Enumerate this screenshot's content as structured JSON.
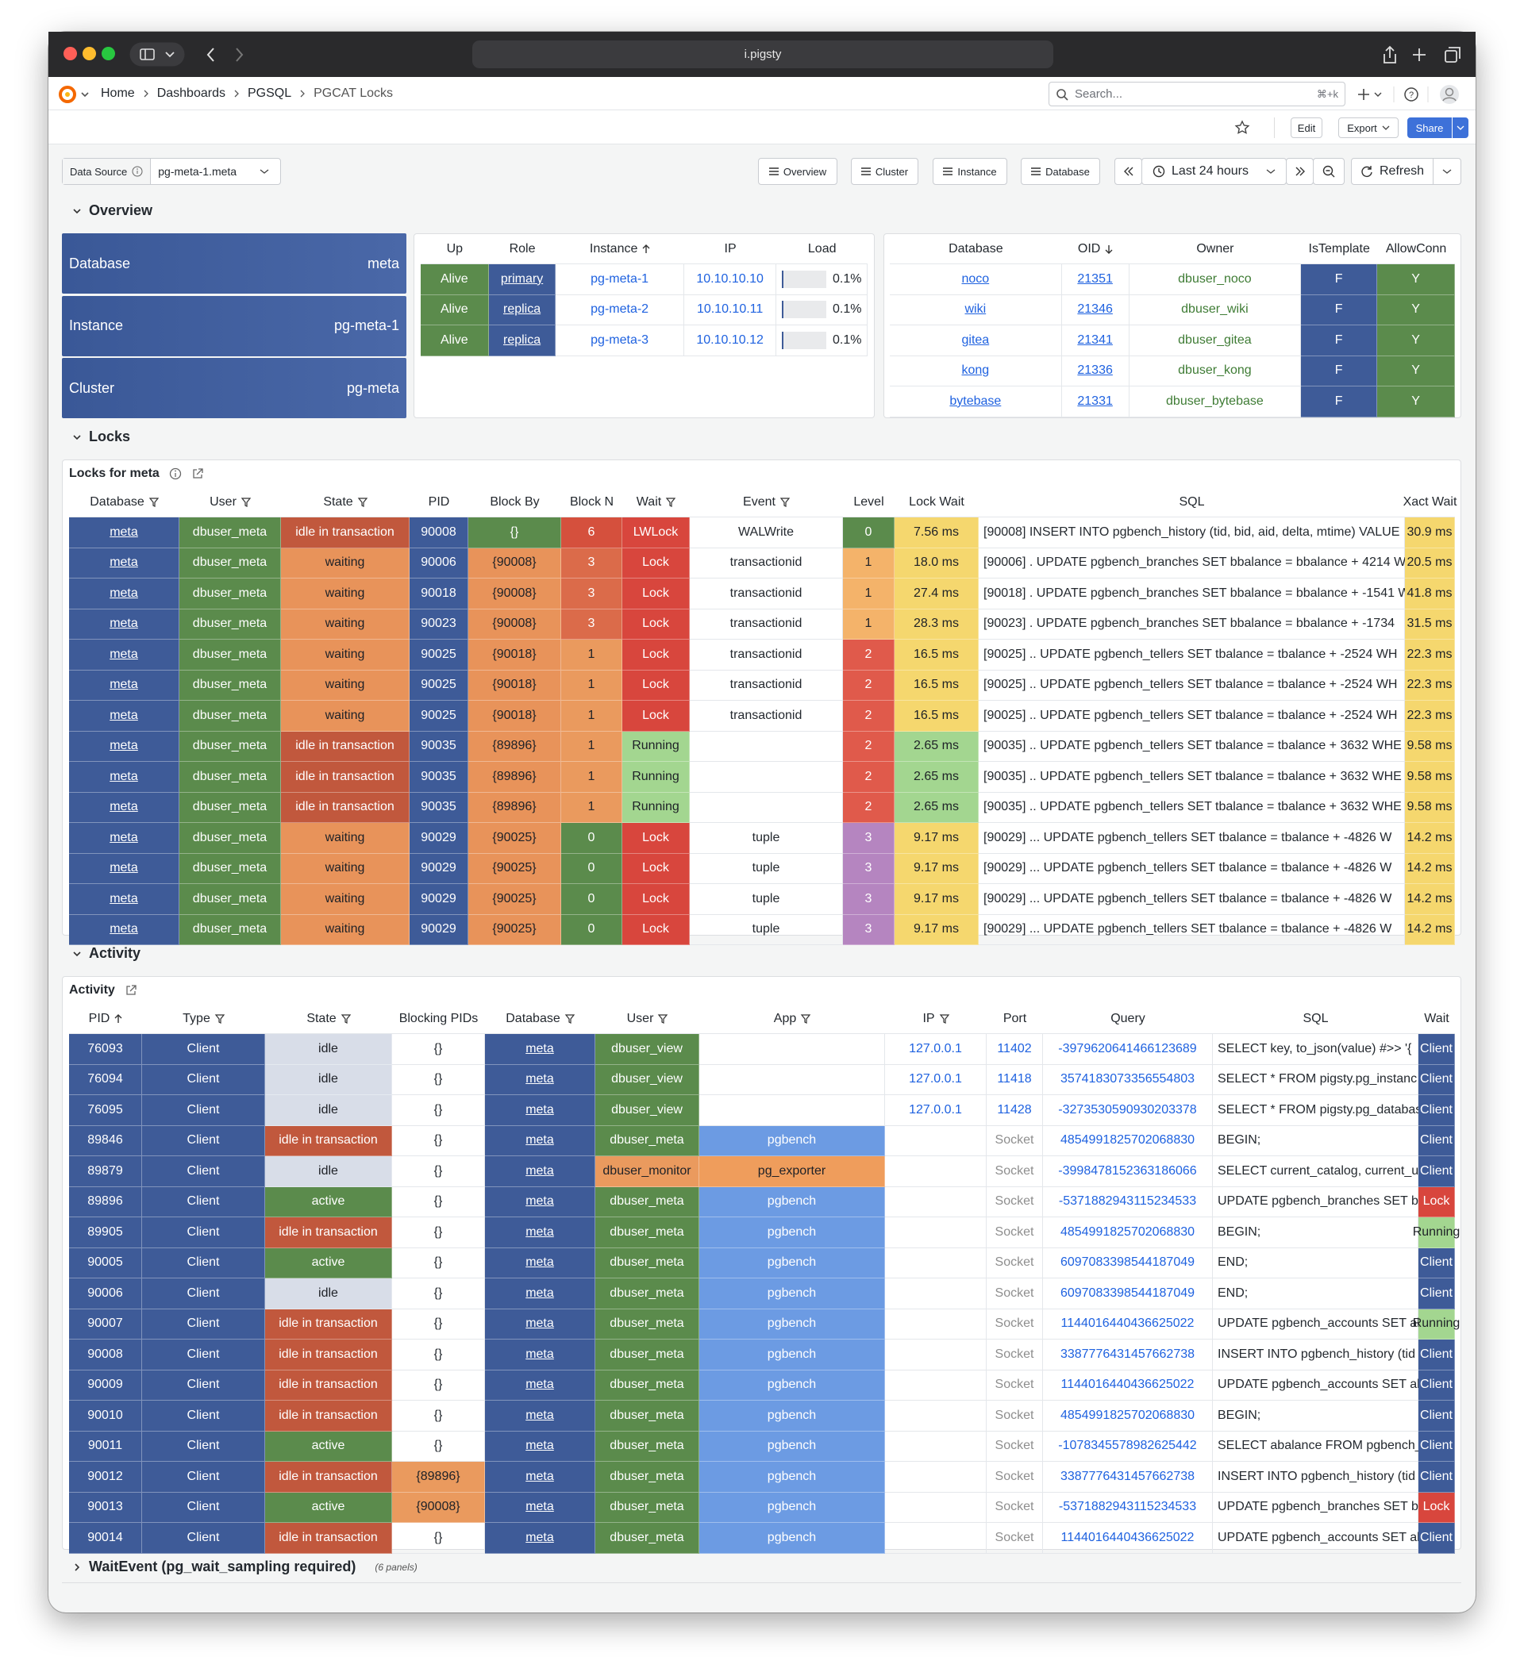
{
  "browser": {
    "url": "i.pigsty"
  },
  "nav": {
    "breadcrumbs": [
      "Home",
      "Dashboards",
      "PGSQL",
      "PGCAT Locks"
    ],
    "search": "Search...",
    "shortcut": "⌘+k"
  },
  "toolbar": {
    "edit": "Edit",
    "export": "Export",
    "share": "Share"
  },
  "variables": {
    "label": "Data Source",
    "value": "pg-meta-1.meta"
  },
  "links": [
    "Overview",
    "Cluster",
    "Instance",
    "Database"
  ],
  "time": {
    "range": "Last 24 hours",
    "refresh": "Refresh"
  },
  "sections": {
    "overview": "Overview",
    "locks": "Locks",
    "activity": "Activity",
    "wait_event": "WaitEvent (pg_wait_sampling required)",
    "wait_event_note": "(6 panels)"
  },
  "stats": [
    {
      "label": "Database",
      "value": "meta"
    },
    {
      "label": "Instance",
      "value": "pg-meta-1"
    },
    {
      "label": "Cluster",
      "value": "pg-meta"
    }
  ],
  "instances": {
    "columns": [
      {
        "name": "Up",
        "fill": "#5b8b4c"
      },
      {
        "name": "Role",
        "fill": "#3e5b98",
        "link": true
      },
      {
        "name": "Instance",
        "sort": "asc",
        "color": "#1f62e0"
      },
      {
        "name": "IP",
        "color": "#1f62e0"
      },
      {
        "name": "Load",
        "gauge": [
          0,
          100
        ]
      }
    ],
    "rows": [
      [
        "Alive",
        "primary",
        "pg-meta-1",
        "10.10.10.10",
        {
          "value": 0.1,
          "label": "0.1%"
        }
      ],
      [
        "Alive",
        "replica",
        "pg-meta-2",
        "10.10.10.11",
        {
          "value": 0.1,
          "label": "0.1%"
        }
      ],
      [
        "Alive",
        "replica",
        "pg-meta-3",
        "10.10.10.12",
        {
          "value": 0.1,
          "label": "0.1%"
        }
      ]
    ]
  },
  "databases": {
    "columns": [
      {
        "name": "Database",
        "link": true,
        "color": "#1f62e0"
      },
      {
        "name": "OID",
        "sort": "desc",
        "link": true,
        "color": "#1f62e0"
      },
      {
        "name": "Owner",
        "color": "#3f7c35"
      },
      {
        "name": "IsTemplate",
        "fill": "#3e5b98"
      },
      {
        "name": "AllowConn",
        "fill": "#5b8b4c"
      }
    ],
    "rows": [
      [
        "noco",
        21351,
        "dbuser_noco",
        "F",
        "Y"
      ],
      [
        "wiki",
        21346,
        "dbuser_wiki",
        "F",
        "Y"
      ],
      [
        "gitea",
        21341,
        "dbuser_gitea",
        "F",
        "Y"
      ],
      [
        "kong",
        21336,
        "dbuser_kong",
        "F",
        "Y"
      ],
      [
        "bytebase",
        21331,
        "dbuser_bytebase",
        "F",
        "Y"
      ]
    ]
  },
  "locks": {
    "title": "Locks for meta",
    "columns": [
      {
        "name": "Database",
        "filter": true,
        "fill": "#3e5b98",
        "link": true
      },
      {
        "name": "User",
        "filter": true,
        "fill": "#5b8b4c"
      },
      {
        "name": "State",
        "filter": true,
        "fills": {
          "idle in transaction": "#c1583d",
          "waiting": "#e8935a"
        }
      },
      {
        "name": "PID",
        "fill": "#3e5b98"
      },
      {
        "name": "Block By",
        "fill": "#e8935a",
        "fills": {
          "{}": "#5b8b4c"
        }
      },
      {
        "name": "Block N",
        "fills": {
          "6": "#d5503d",
          "3": "#db6b4a",
          "1": "#ea9a5e",
          "0": "#5b8b4c"
        }
      },
      {
        "name": "Wait",
        "filter": true,
        "fills": {
          "LWLock": "#d8463d",
          "Lock": "#d8463d",
          "Running": "#a3d690"
        }
      },
      {
        "name": "Event",
        "filter": true
      },
      {
        "name": "Level",
        "fills": {
          "0": "#5b8b4c",
          "1": "#f4b36a",
          "2": "#e05a4b",
          "3": "#b585c0"
        }
      },
      {
        "name": "Lock Wait",
        "fill": "#f5d76e",
        "fills": {
          "2.65 ms": "#a3d690"
        }
      },
      {
        "name": "SQL"
      },
      {
        "name": "Xact Wait",
        "fill": "#f5d76e"
      }
    ],
    "rows": [
      [
        "meta",
        "dbuser_meta",
        "idle in transaction",
        90008,
        "{}",
        6,
        "LWLock",
        "WALWrite",
        0,
        "7.56 ms",
        "[90008] INSERT INTO pgbench_history (tid, bid, aid, delta, mtime) VALUE",
        "30.9 ms"
      ],
      [
        "meta",
        "dbuser_meta",
        "waiting",
        90006,
        "{90008}",
        3,
        "Lock",
        "transactionid",
        1,
        "18.0 ms",
        "[90006] . UPDATE pgbench_branches SET bbalance = bbalance + 4214 W",
        "20.5 ms"
      ],
      [
        "meta",
        "dbuser_meta",
        "waiting",
        90018,
        "{90008}",
        3,
        "Lock",
        "transactionid",
        1,
        "27.4 ms",
        "[90018] . UPDATE pgbench_branches SET bbalance = bbalance + -1541 W",
        "41.8 ms"
      ],
      [
        "meta",
        "dbuser_meta",
        "waiting",
        90023,
        "{90008}",
        3,
        "Lock",
        "transactionid",
        1,
        "28.3 ms",
        "[90023] . UPDATE pgbench_branches SET bbalance = bbalance + -1734",
        "31.5 ms"
      ],
      [
        "meta",
        "dbuser_meta",
        "waiting",
        90025,
        "{90018}",
        1,
        "Lock",
        "transactionid",
        2,
        "16.5 ms",
        "[90025] .. UPDATE pgbench_tellers SET tbalance = tbalance + -2524 WH",
        "22.3 ms"
      ],
      [
        "meta",
        "dbuser_meta",
        "waiting",
        90025,
        "{90018}",
        1,
        "Lock",
        "transactionid",
        2,
        "16.5 ms",
        "[90025] .. UPDATE pgbench_tellers SET tbalance = tbalance + -2524 WH",
        "22.3 ms"
      ],
      [
        "meta",
        "dbuser_meta",
        "waiting",
        90025,
        "{90018}",
        1,
        "Lock",
        "transactionid",
        2,
        "16.5 ms",
        "[90025] .. UPDATE pgbench_tellers SET tbalance = tbalance + -2524 WH",
        "22.3 ms"
      ],
      [
        "meta",
        "dbuser_meta",
        "idle in transaction",
        90035,
        "{89896}",
        1,
        "Running",
        null,
        2,
        "2.65 ms",
        "[90035] .. UPDATE pgbench_tellers SET tbalance = tbalance + 3632 WHE",
        "9.58 ms"
      ],
      [
        "meta",
        "dbuser_meta",
        "idle in transaction",
        90035,
        "{89896}",
        1,
        "Running",
        null,
        2,
        "2.65 ms",
        "[90035] .. UPDATE pgbench_tellers SET tbalance = tbalance + 3632 WHE",
        "9.58 ms"
      ],
      [
        "meta",
        "dbuser_meta",
        "idle in transaction",
        90035,
        "{89896}",
        1,
        "Running",
        null,
        2,
        "2.65 ms",
        "[90035] .. UPDATE pgbench_tellers SET tbalance = tbalance + 3632 WHE",
        "9.58 ms"
      ],
      [
        "meta",
        "dbuser_meta",
        "waiting",
        90029,
        "{90025}",
        0,
        "Lock",
        "tuple",
        3,
        "9.17 ms",
        "[90029] ... UPDATE pgbench_tellers SET tbalance = tbalance + -4826 W",
        "14.2 ms"
      ],
      [
        "meta",
        "dbuser_meta",
        "waiting",
        90029,
        "{90025}",
        0,
        "Lock",
        "tuple",
        3,
        "9.17 ms",
        "[90029] ... UPDATE pgbench_tellers SET tbalance = tbalance + -4826 W",
        "14.2 ms"
      ],
      [
        "meta",
        "dbuser_meta",
        "waiting",
        90029,
        "{90025}",
        0,
        "Lock",
        "tuple",
        3,
        "9.17 ms",
        "[90029] ... UPDATE pgbench_tellers SET tbalance = tbalance + -4826 W",
        "14.2 ms"
      ],
      [
        "meta",
        "dbuser_meta",
        "waiting",
        90029,
        "{90025}",
        0,
        "Lock",
        "tuple",
        3,
        "9.17 ms",
        "[90029] ... UPDATE pgbench_tellers SET tbalance = tbalance + -4826 W",
        "14.2 ms"
      ]
    ]
  },
  "activity": {
    "title": "Activity",
    "columns": [
      {
        "name": "PID",
        "sort": "asc",
        "fill": "#3e5b98"
      },
      {
        "name": "Type",
        "filter": true,
        "fill": "#3e5b98"
      },
      {
        "name": "State",
        "filter": true,
        "fills": {
          "idle": "#d8dde8",
          "idle in transaction": "#c1583d",
          "active": "#5b8b4c"
        }
      },
      {
        "name": "Blocking PIDs",
        "fills": {
          "{89896}": "#ea9a5e",
          "{90008}": "#ea9a5e"
        }
      },
      {
        "name": "Database",
        "filter": true,
        "fill": "#3e5b98",
        "link": true
      },
      {
        "name": "User",
        "filter": true,
        "fill": "#5b8b4c",
        "fills": {
          "dbuser_monitor": "#ea9a5e"
        }
      },
      {
        "name": "App",
        "filter": true,
        "fills": {
          "pgbench": "#6c9be3",
          "pg_exporter": "#ef9d5c"
        }
      },
      {
        "name": "IP",
        "filter": true,
        "color": "#1f62e0"
      },
      {
        "name": "Port",
        "color": "#1f62e0",
        "colors": {
          "Socket": "#8e8e8e"
        }
      },
      {
        "name": "Query",
        "color": "#1f62e0"
      },
      {
        "name": "SQL"
      },
      {
        "name": "Wait",
        "fill": "#3e5b98",
        "fills": {
          "Lock": "#d8463d",
          "Running": "#a3d690"
        }
      }
    ],
    "rows": [
      [
        76093,
        "Client",
        "idle",
        "{}",
        "meta",
        "dbuser_view",
        null,
        "127.0.0.1",
        11402,
        "-3979620641466123689",
        "SELECT key, to_json(value) #>> '{",
        "Client"
      ],
      [
        76094,
        "Client",
        "idle",
        "{}",
        "meta",
        "dbuser_view",
        null,
        "127.0.0.1",
        11418,
        "3574183073356554803",
        "SELECT * FROM pigsty.pg_instanc",
        "Client"
      ],
      [
        76095,
        "Client",
        "idle",
        "{}",
        "meta",
        "dbuser_view",
        null,
        "127.0.0.1",
        11428,
        "-3273530590930203378",
        "SELECT * FROM pigsty.pg_databas",
        "Client"
      ],
      [
        89846,
        "Client",
        "idle in transaction",
        "{}",
        "meta",
        "dbuser_meta",
        "pgbench",
        null,
        "Socket",
        "4854991825702068830",
        "BEGIN;",
        "Client"
      ],
      [
        89879,
        "Client",
        "idle",
        "{}",
        "meta",
        "dbuser_monitor",
        "pg_exporter",
        null,
        "Socket",
        "-3998478152363186066",
        "SELECT current_catalog, current_u",
        "Client"
      ],
      [
        89896,
        "Client",
        "active",
        "{}",
        "meta",
        "dbuser_meta",
        "pgbench",
        null,
        "Socket",
        "-5371882943115234533",
        "UPDATE pgbench_branches SET b",
        "Lock"
      ],
      [
        89905,
        "Client",
        "idle in transaction",
        "{}",
        "meta",
        "dbuser_meta",
        "pgbench",
        null,
        "Socket",
        "4854991825702068830",
        "BEGIN;",
        "Running"
      ],
      [
        90005,
        "Client",
        "active",
        "{}",
        "meta",
        "dbuser_meta",
        "pgbench",
        null,
        "Socket",
        "6097083398544187049",
        "END;",
        "Client"
      ],
      [
        90006,
        "Client",
        "idle",
        "{}",
        "meta",
        "dbuser_meta",
        "pgbench",
        null,
        "Socket",
        "6097083398544187049",
        "END;",
        "Client"
      ],
      [
        90007,
        "Client",
        "idle in transaction",
        "{}",
        "meta",
        "dbuser_meta",
        "pgbench",
        null,
        "Socket",
        "1144016440436625022",
        "UPDATE pgbench_accounts SET ab",
        "Running"
      ],
      [
        90008,
        "Client",
        "idle in transaction",
        "{}",
        "meta",
        "dbuser_meta",
        "pgbench",
        null,
        "Socket",
        "3387776431457662738",
        "INSERT INTO pgbench_history (tid",
        "Client"
      ],
      [
        90009,
        "Client",
        "idle in transaction",
        "{}",
        "meta",
        "dbuser_meta",
        "pgbench",
        null,
        "Socket",
        "1144016440436625022",
        "UPDATE pgbench_accounts SET ab",
        "Client"
      ],
      [
        90010,
        "Client",
        "idle in transaction",
        "{}",
        "meta",
        "dbuser_meta",
        "pgbench",
        null,
        "Socket",
        "4854991825702068830",
        "BEGIN;",
        "Client"
      ],
      [
        90011,
        "Client",
        "active",
        "{}",
        "meta",
        "dbuser_meta",
        "pgbench",
        null,
        "Socket",
        "-1078345578982625442",
        "SELECT abalance FROM pgbench_",
        "Client"
      ],
      [
        90012,
        "Client",
        "idle in transaction",
        "{89896}",
        "meta",
        "dbuser_meta",
        "pgbench",
        null,
        "Socket",
        "3387776431457662738",
        "INSERT INTO pgbench_history (tid",
        "Client"
      ],
      [
        90013,
        "Client",
        "active",
        "{90008}",
        "meta",
        "dbuser_meta",
        "pgbench",
        null,
        "Socket",
        "-5371882943115234533",
        "UPDATE pgbench_branches SET b",
        "Lock"
      ],
      [
        90014,
        "Client",
        "idle in transaction",
        "{}",
        "meta",
        "dbuser_meta",
        "pgbench",
        null,
        "Socket",
        "1144016440436625022",
        "UPDATE pgbench_accounts SET ab",
        "Client"
      ]
    ]
  }
}
